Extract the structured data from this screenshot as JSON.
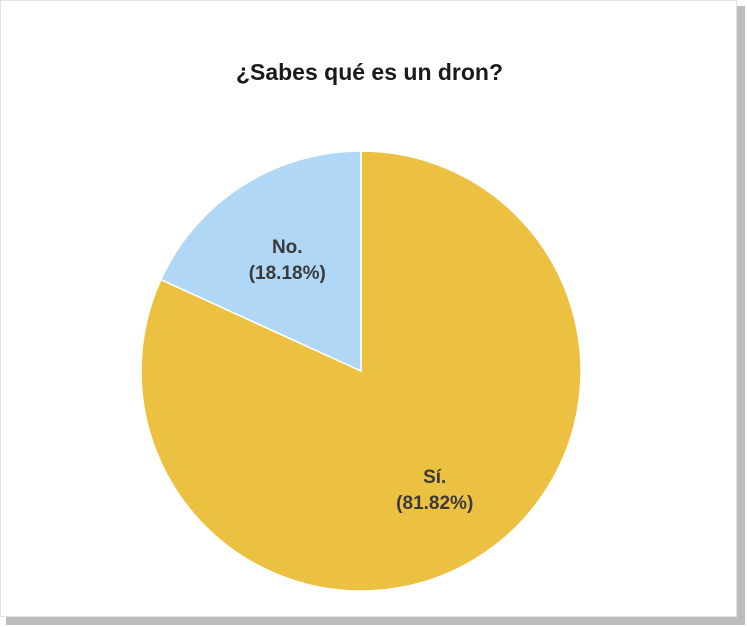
{
  "chart_data": {
    "type": "pie",
    "title": "¿Sabes qué es un dron?",
    "slices": [
      {
        "label": "Sí.",
        "percent_label": "(81.82%)",
        "value": 81.82,
        "color": "#ecc142"
      },
      {
        "label": "No.",
        "percent_label": "(18.18%)",
        "value": 18.18,
        "color": "#b0d7f5"
      }
    ],
    "start_angle_deg": 0,
    "direction": "clockwise",
    "legend": "none"
  }
}
